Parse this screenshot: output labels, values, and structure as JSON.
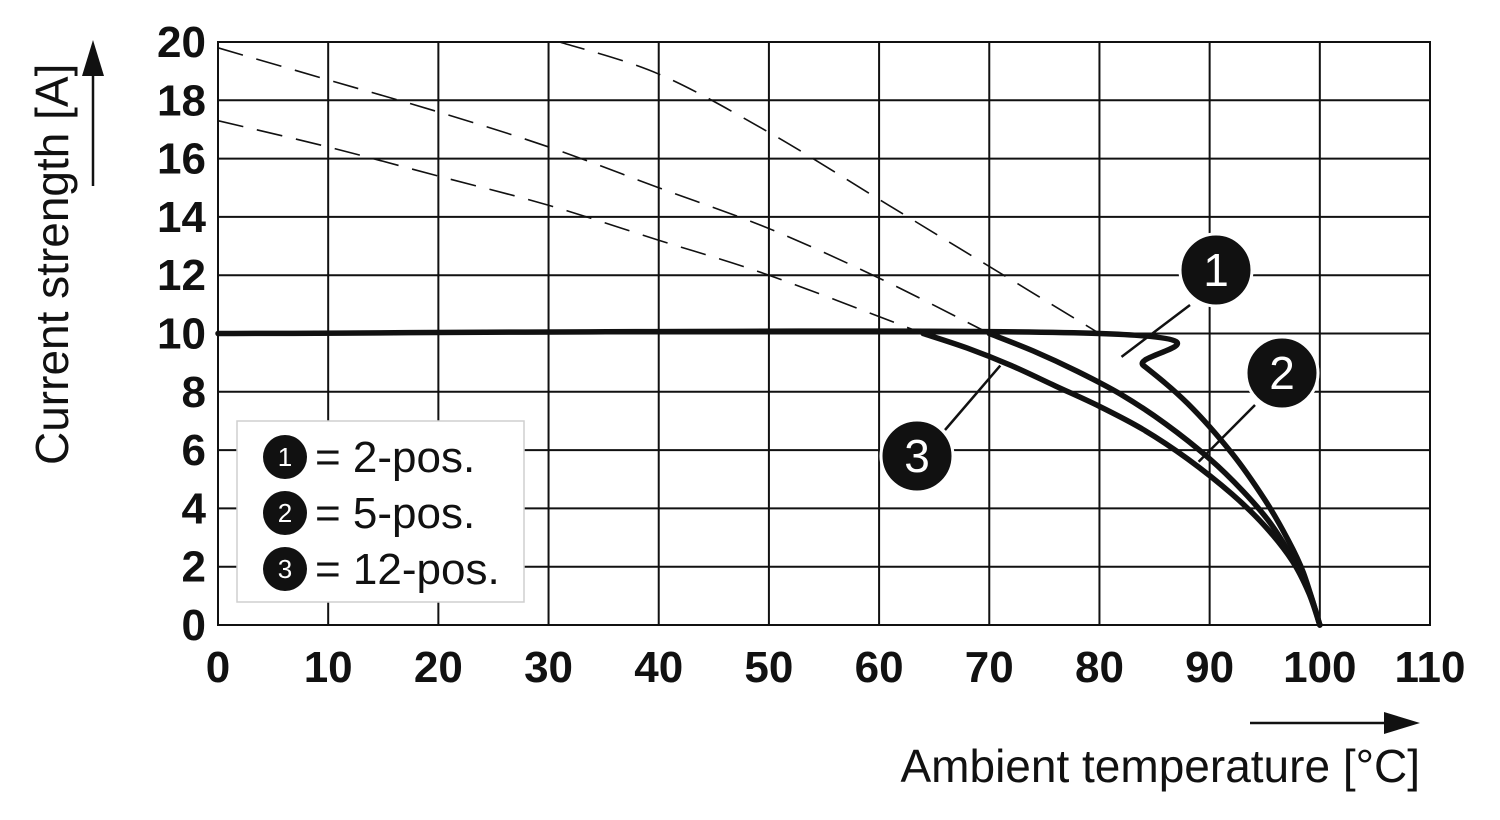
{
  "chart_data": {
    "type": "line",
    "title": "",
    "xlabel": "Ambient temperature [°C]",
    "ylabel": "Current strength [A]",
    "xlim": [
      0,
      110
    ],
    "ylim": [
      0,
      20
    ],
    "x_ticks": [
      "0",
      "10",
      "20",
      "30",
      "40",
      "50",
      "60",
      "70",
      "80",
      "90",
      "100",
      "110"
    ],
    "y_ticks": [
      "0",
      "2",
      "4",
      "6",
      "8",
      "10",
      "12",
      "14",
      "16",
      "18",
      "20"
    ],
    "grid": true,
    "legend": {
      "placement": "bottom-left",
      "entries": [
        {
          "marker": "1",
          "text": "= 2-pos."
        },
        {
          "marker": "2",
          "text": "= 5-pos."
        },
        {
          "marker": "3",
          "text": "= 12-pos."
        }
      ]
    },
    "series": [
      {
        "marker": "1",
        "style": "solid",
        "x": [
          0,
          80,
          84,
          88,
          92,
          95,
          97,
          98.5,
          100
        ],
        "y": [
          10,
          10,
          8.9,
          7.6,
          5.9,
          4.3,
          3.0,
          1.8,
          0
        ]
      },
      {
        "marker": "2",
        "style": "solid",
        "x": [
          70,
          74,
          78,
          82,
          86,
          90,
          93,
          95.5,
          97.5,
          99,
          100
        ],
        "y": [
          10,
          9.4,
          8.7,
          7.9,
          6.9,
          5.7,
          4.6,
          3.5,
          2.3,
          1.2,
          0
        ]
      },
      {
        "marker": "3",
        "style": "solid",
        "x": [
          64,
          68,
          72,
          76,
          80,
          84,
          88,
          92,
          95,
          97.5,
          99,
          100
        ],
        "y": [
          10,
          9.5,
          8.9,
          8.2,
          7.5,
          6.7,
          5.7,
          4.5,
          3.4,
          2.2,
          1.1,
          0
        ]
      },
      {
        "marker": "1",
        "style": "dashed",
        "x": [
          31,
          40,
          50,
          60,
          70,
          80
        ],
        "y": [
          20,
          18.9,
          16.9,
          14.6,
          12.3,
          10
        ]
      },
      {
        "marker": "2",
        "style": "dashed",
        "x": [
          0,
          10,
          20,
          30,
          40,
          50,
          60,
          70
        ],
        "y": [
          19.8,
          18.7,
          17.6,
          16.4,
          15.0,
          13.6,
          11.9,
          10
        ]
      },
      {
        "marker": "3",
        "style": "dashed",
        "x": [
          0,
          10,
          20,
          30,
          40,
          50,
          64
        ],
        "y": [
          17.3,
          16.4,
          15.4,
          14.4,
          13.2,
          12.0,
          10
        ]
      }
    ],
    "callouts": [
      {
        "marker": "1",
        "leader_to": [
          82,
          9.2
        ]
      },
      {
        "marker": "2",
        "leader_to": [
          89,
          5.6
        ]
      },
      {
        "marker": "3",
        "leader_to": [
          71,
          8.9
        ]
      }
    ]
  }
}
